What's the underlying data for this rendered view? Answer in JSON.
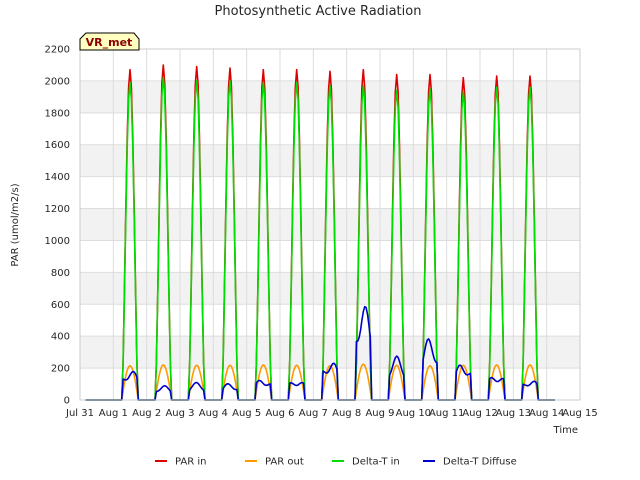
{
  "chart_data": {
    "type": "line",
    "title": "Photosynthetic Active Radiation",
    "xlabel": "Time",
    "ylabel": "PAR (umol/m2/s)",
    "site_label": "VR_met",
    "ylim": [
      0,
      2200
    ],
    "yticks": [
      0,
      200,
      400,
      600,
      800,
      1000,
      1200,
      1400,
      1600,
      1800,
      2000,
      2200
    ],
    "xlim": [
      0,
      15
    ],
    "xtick_labels": [
      "Jul 31",
      "Aug 1",
      "Aug 2",
      "Aug 3",
      "Aug 4",
      "Aug 5",
      "Aug 6",
      "Aug 7",
      "Aug 8",
      "Aug 9",
      "Aug 10",
      "Aug 11",
      "Aug 12",
      "Aug 13",
      "Aug 14",
      "Aug 15"
    ],
    "grid": true,
    "legend_position": "bottom",
    "days": [
      "Aug 1",
      "Aug 2",
      "Aug 3",
      "Aug 4",
      "Aug 5",
      "Aug 6",
      "Aug 7",
      "Aug 8",
      "Aug 9",
      "Aug 10",
      "Aug 11",
      "Aug 12",
      "Aug 13",
      "Aug 14"
    ],
    "series": [
      {
        "name": "PAR in",
        "color": "#dd0000",
        "daily_peak": [
          2070,
          2100,
          2090,
          2080,
          2070,
          2070,
          2060,
          2070,
          2040,
          2040,
          2020,
          2030,
          2030,
          2010
        ]
      },
      {
        "name": "PAR out",
        "color": "#ff9900",
        "daily_peak": [
          215,
          220,
          218,
          218,
          220,
          218,
          215,
          225,
          218,
          215,
          218,
          220,
          220,
          222
        ]
      },
      {
        "name": "Delta-T in",
        "color": "#00dd00",
        "daily_peak": [
          1990,
          2020,
          2000,
          2000,
          1990,
          1990,
          1970,
          1970,
          1940,
          1950,
          1930,
          1960,
          1960,
          1970
        ]
      },
      {
        "name": "Delta-T Diffuse",
        "color": "#0000cc",
        "daily_peak": [
          190,
          90,
          110,
          105,
          135,
          130,
          250,
          600,
          275,
          390,
          235,
          165,
          130,
          145
        ]
      }
    ]
  }
}
